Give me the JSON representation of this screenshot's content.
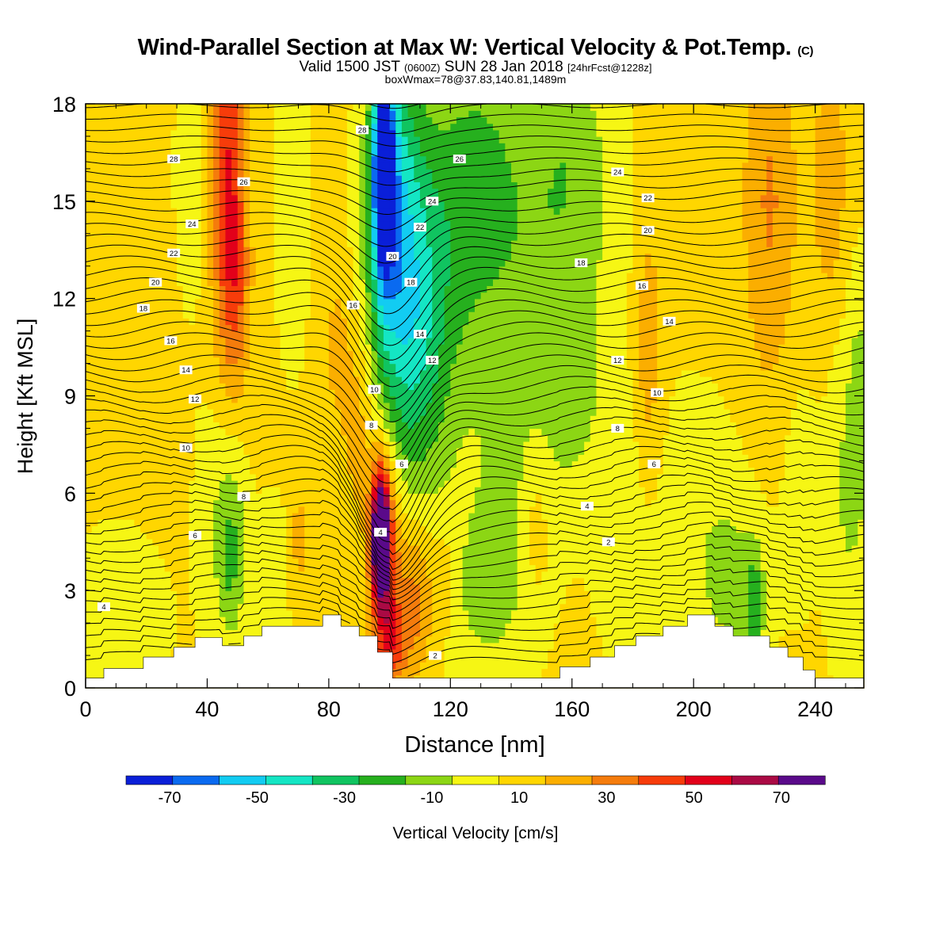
{
  "header": {
    "title_main": "Wind-Parallel Section at Max W: Vertical Velocity & Pot.Temp.",
    "title_copyright": "(C)",
    "valid_prefix": "Valid 1500 JST",
    "valid_utc": "(0600Z)",
    "valid_date": "SUN 28 Jan 2018",
    "valid_fcst": "[24hrFcst@1228z]",
    "box_line": "boxWmax=78@37.83,140.81,1489m"
  },
  "colorbar": {
    "label": "Vertical Velocity [cm/s]",
    "bounds": [
      -80,
      -70,
      -60,
      -50,
      -40,
      -30,
      -20,
      -10,
      0,
      10,
      20,
      30,
      40,
      50,
      60,
      70,
      80
    ],
    "colors": [
      "#0a1fd8",
      "#0a6af0",
      "#12ccf2",
      "#14e6c4",
      "#10c460",
      "#26b01e",
      "#8cd614",
      "#f6f614",
      "#ffd600",
      "#fbae00",
      "#f57c0c",
      "#f73c0a",
      "#e2001a",
      "#aa0a44",
      "#5a0a8a"
    ],
    "tick_labels": [
      "-70",
      "-50",
      "-30",
      "-10",
      "10",
      "30",
      "50",
      "70"
    ]
  },
  "chart_data": {
    "type": "heatmap",
    "title": "Wind-Parallel Section at Max W: Vertical Velocity & Pot.Temp.",
    "xlabel": "Distance [nm]",
    "ylabel": "Height [Kft MSL]",
    "xlim": [
      0,
      256
    ],
    "ylim": [
      0,
      18
    ],
    "x_ticks": [
      "0",
      "40",
      "80",
      "120",
      "160",
      "200",
      "240"
    ],
    "y_ticks": [
      "0",
      "3",
      "6",
      "9",
      "12",
      "15",
      "18"
    ],
    "fill_variable": "Vertical Velocity [cm/s]",
    "contour_variable": "Potential temperature",
    "w_max": 78,
    "terrain": [
      [
        0,
        0.3
      ],
      [
        6,
        0.3
      ],
      [
        6,
        0.6
      ],
      [
        19,
        0.6
      ],
      [
        19,
        0.95
      ],
      [
        29,
        0.95
      ],
      [
        29,
        1.25
      ],
      [
        36,
        1.25
      ],
      [
        36,
        1.55
      ],
      [
        45,
        1.55
      ],
      [
        45,
        1.3
      ],
      [
        52,
        1.3
      ],
      [
        52,
        1.6
      ],
      [
        58,
        1.6
      ],
      [
        58,
        1.9
      ],
      [
        78,
        1.9
      ],
      [
        78,
        2.25
      ],
      [
        84,
        2.25
      ],
      [
        84,
        1.9
      ],
      [
        90,
        1.9
      ],
      [
        90,
        1.6
      ],
      [
        96,
        1.6
      ],
      [
        96,
        1.1
      ],
      [
        101,
        1.1
      ],
      [
        101,
        0.3
      ],
      [
        156,
        0.3
      ],
      [
        156,
        0.65
      ],
      [
        166,
        0.65
      ],
      [
        166,
        0.95
      ],
      [
        174,
        0.95
      ],
      [
        174,
        1.3
      ],
      [
        181,
        1.3
      ],
      [
        181,
        1.6
      ],
      [
        190,
        1.6
      ],
      [
        190,
        1.9
      ],
      [
        198,
        1.9
      ],
      [
        198,
        2.25
      ],
      [
        207,
        2.25
      ],
      [
        207,
        1.9
      ],
      [
        213,
        1.9
      ],
      [
        213,
        1.6
      ],
      [
        225,
        1.6
      ],
      [
        225,
        1.25
      ],
      [
        231,
        1.25
      ],
      [
        231,
        0.95
      ],
      [
        236,
        0.95
      ],
      [
        236,
        0.55
      ],
      [
        240,
        0.55
      ],
      [
        240,
        0.3
      ],
      [
        256,
        0.3
      ]
    ],
    "w_features": [
      {
        "x": 97,
        "z": 4.7,
        "sx": 2.2,
        "sz": 1.5,
        "w": 78
      },
      {
        "x": 99,
        "z": 4.0,
        "sx": 3.5,
        "sz": 2.3,
        "w": 28
      },
      {
        "x": 109,
        "z": 2.8,
        "sx": 4.5,
        "sz": 1.7,
        "w": 24
      },
      {
        "x": 101,
        "z": 1.4,
        "sx": 3.5,
        "sz": 0.9,
        "w": 25
      },
      {
        "x": 90,
        "z": 8.0,
        "sx": 3.5,
        "sz": 2.2,
        "w": 13
      },
      {
        "x": 83,
        "z": 10.5,
        "sx": 3.5,
        "sz": 1.8,
        "w": 10
      },
      {
        "x": 118,
        "z": 3.2,
        "sx": 2.0,
        "sz": 1.1,
        "w": 12
      },
      {
        "x": 47,
        "z": 15.5,
        "sx": 4.0,
        "sz": 4.0,
        "w": 38
      },
      {
        "x": 50,
        "z": 12.0,
        "sx": 3.0,
        "sz": 2.0,
        "w": 14
      },
      {
        "x": 185,
        "z": 10.5,
        "sx": 3.5,
        "sz": 3.0,
        "w": 16
      },
      {
        "x": 225,
        "z": 15.0,
        "sx": 6.0,
        "sz": 4.0,
        "w": 18
      },
      {
        "x": 245,
        "z": 15.5,
        "sx": 4.0,
        "sz": 3.0,
        "w": 14
      },
      {
        "x": 148,
        "z": 5.0,
        "sx": 3.0,
        "sz": 1.5,
        "w": 11
      },
      {
        "x": 70,
        "z": 4.5,
        "sx": 2.0,
        "sz": 1.5,
        "w": 11
      },
      {
        "x": 98,
        "z": 16.0,
        "sx": 2.5,
        "sz": 2.3,
        "w": -68
      },
      {
        "x": 100,
        "z": 14.5,
        "sx": 6.0,
        "sz": 4.0,
        "w": -42
      },
      {
        "x": 108,
        "z": 12.5,
        "sx": 7.0,
        "sz": 4.5,
        "w": -22
      },
      {
        "x": 110,
        "z": 10.0,
        "sx": 8.0,
        "sz": 3.0,
        "w": -15
      },
      {
        "x": 120,
        "z": 14.0,
        "sx": 10.0,
        "sz": 4.0,
        "w": -16
      },
      {
        "x": 150,
        "z": 14.0,
        "sx": 18.0,
        "sz": 4.0,
        "w": -20
      },
      {
        "x": 160,
        "z": 17.0,
        "sx": 8.0,
        "sz": 2.0,
        "w": -8
      },
      {
        "x": 130,
        "z": 16.0,
        "sx": 8.0,
        "sz": 2.5,
        "w": -12
      },
      {
        "x": 68,
        "z": 15.0,
        "sx": 4.0,
        "sz": 3.5,
        "w": -12
      },
      {
        "x": 35,
        "z": 16.0,
        "sx": 4.0,
        "sz": 3.0,
        "w": -10
      },
      {
        "x": 45,
        "z": 5.5,
        "sx": 6.0,
        "sz": 3.0,
        "w": -12
      },
      {
        "x": 48,
        "z": 4.0,
        "sx": 3.0,
        "sz": 1.8,
        "w": -18
      },
      {
        "x": 10,
        "z": 2.0,
        "sx": 12.0,
        "sz": 2.0,
        "w": -11
      },
      {
        "x": 62,
        "z": 3.0,
        "sx": 4.0,
        "sz": 2.0,
        "w": -10
      },
      {
        "x": 130,
        "z": 2.5,
        "sx": 12.0,
        "sz": 2.5,
        "w": -12
      },
      {
        "x": 140,
        "z": 6.0,
        "sx": 10.0,
        "sz": 3.0,
        "w": -10
      },
      {
        "x": 175,
        "z": 5.5,
        "sx": 6.0,
        "sz": 3.0,
        "w": -10
      },
      {
        "x": 200,
        "z": 5.0,
        "sx": 12.0,
        "sz": 3.0,
        "w": -10
      },
      {
        "x": 215,
        "z": 3.0,
        "sx": 8.0,
        "sz": 2.0,
        "w": -13
      },
      {
        "x": 220,
        "z": 2.5,
        "sx": 2.0,
        "sz": 1.2,
        "w": -22
      },
      {
        "x": 235,
        "z": 6.0,
        "sx": 4.0,
        "sz": 2.5,
        "w": -10
      },
      {
        "x": 250,
        "z": 6.0,
        "sx": 5.0,
        "sz": 4.0,
        "w": -13
      },
      {
        "x": 255,
        "z": 9.0,
        "sx": 3.0,
        "sz": 3.0,
        "w": -12
      },
      {
        "x": 160,
        "z": 9.0,
        "sx": 6.0,
        "sz": 2.5,
        "w": -11
      }
    ],
    "theta_contour_labels": [
      {
        "value": "28",
        "x": 29,
        "z": 16.3
      },
      {
        "value": "26",
        "x": 52,
        "z": 15.6
      },
      {
        "value": "24",
        "x": 35,
        "z": 14.3
      },
      {
        "value": "22",
        "x": 29,
        "z": 13.4
      },
      {
        "value": "20",
        "x": 23,
        "z": 12.5
      },
      {
        "value": "18",
        "x": 19,
        "z": 11.7
      },
      {
        "value": "16",
        "x": 28,
        "z": 10.7
      },
      {
        "value": "14",
        "x": 33,
        "z": 9.8
      },
      {
        "value": "12",
        "x": 36,
        "z": 8.9
      },
      {
        "value": "10",
        "x": 33,
        "z": 7.4
      },
      {
        "value": "8",
        "x": 52,
        "z": 5.9
      },
      {
        "value": "6",
        "x": 36,
        "z": 4.7
      },
      {
        "value": "4",
        "x": 6,
        "z": 2.5
      },
      {
        "value": "28",
        "x": 91,
        "z": 17.2
      },
      {
        "value": "26",
        "x": 123,
        "z": 16.3
      },
      {
        "value": "24",
        "x": 114,
        "z": 15.0
      },
      {
        "value": "22",
        "x": 110,
        "z": 14.2
      },
      {
        "value": "20",
        "x": 101,
        "z": 13.3
      },
      {
        "value": "18",
        "x": 107,
        "z": 12.5
      },
      {
        "value": "16",
        "x": 88,
        "z": 11.8
      },
      {
        "value": "14",
        "x": 110,
        "z": 10.9
      },
      {
        "value": "12",
        "x": 114,
        "z": 10.1
      },
      {
        "value": "10",
        "x": 95,
        "z": 9.2
      },
      {
        "value": "8",
        "x": 94,
        "z": 8.1
      },
      {
        "value": "6",
        "x": 104,
        "z": 6.9
      },
      {
        "value": "4",
        "x": 97,
        "z": 4.8
      },
      {
        "value": "2",
        "x": 115,
        "z": 1.0
      },
      {
        "value": "24",
        "x": 175,
        "z": 15.9
      },
      {
        "value": "22",
        "x": 185,
        "z": 15.1
      },
      {
        "value": "20",
        "x": 185,
        "z": 14.1
      },
      {
        "value": "18",
        "x": 163,
        "z": 13.1
      },
      {
        "value": "16",
        "x": 183,
        "z": 12.4
      },
      {
        "value": "14",
        "x": 192,
        "z": 11.3
      },
      {
        "value": "12",
        "x": 175,
        "z": 10.1
      },
      {
        "value": "10",
        "x": 188,
        "z": 9.1
      },
      {
        "value": "8",
        "x": 175,
        "z": 8.0
      },
      {
        "value": "6",
        "x": 187,
        "z": 6.9
      },
      {
        "value": "4",
        "x": 165,
        "z": 5.6
      },
      {
        "value": "2",
        "x": 172,
        "z": 4.5
      }
    ]
  }
}
